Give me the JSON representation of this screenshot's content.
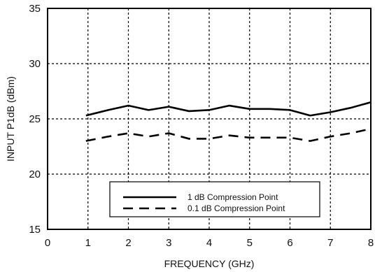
{
  "chart_data": {
    "type": "line",
    "title": "",
    "xlabel": "FREQUENCY (GHz)",
    "ylabel": "INPUT P1dB (dBm)",
    "xlim": [
      0,
      8
    ],
    "ylim": [
      15,
      35
    ],
    "xticks": [
      0,
      1,
      2,
      3,
      4,
      5,
      6,
      7,
      8
    ],
    "yticks": [
      15,
      20,
      25,
      30,
      35
    ],
    "grid": true,
    "legend_position": "bottom-center",
    "series": [
      {
        "name": "1 dB Compression Point",
        "style": "solid",
        "color": "#000000",
        "x": [
          0.95,
          1.5,
          2.0,
          2.5,
          3.0,
          3.5,
          4.0,
          4.5,
          5.0,
          5.5,
          6.0,
          6.5,
          7.0,
          7.5,
          8.0
        ],
        "y": [
          25.3,
          25.8,
          26.2,
          25.8,
          26.1,
          25.7,
          25.8,
          26.2,
          25.9,
          25.9,
          25.8,
          25.3,
          25.6,
          26.0,
          26.5
        ]
      },
      {
        "name": "0.1 dB Compression Point",
        "style": "dashed",
        "color": "#000000",
        "x": [
          0.95,
          1.5,
          2.0,
          2.5,
          3.0,
          3.5,
          4.0,
          4.5,
          5.0,
          5.5,
          6.0,
          6.5,
          7.0,
          7.5,
          8.0
        ],
        "y": [
          23.0,
          23.4,
          23.7,
          23.4,
          23.7,
          23.2,
          23.2,
          23.5,
          23.3,
          23.3,
          23.3,
          23.0,
          23.4,
          23.7,
          24.1
        ]
      }
    ]
  }
}
